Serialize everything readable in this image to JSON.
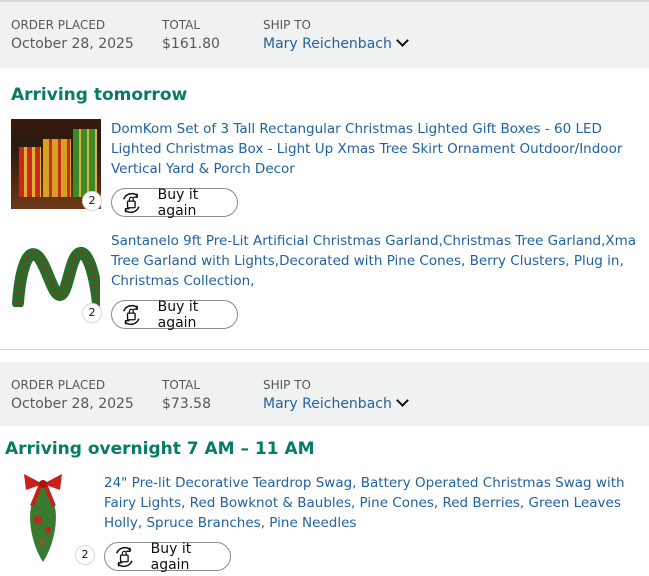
{
  "orders": [
    {
      "order_placed_label": "ORDER PLACED",
      "order_date": "October 28, 2025",
      "total_label": "TOTAL",
      "total": "$161.80",
      "ship_to_label": "SHIP TO",
      "ship_to": "Mary Reichenbach",
      "status": "Arriving tomorrow",
      "items": [
        {
          "title": "DomKom Set of 3 Tall Rectangular Christmas Lighted Gift Boxes - 60 LED Lighted Christmas Box - Light Up Xmas Tree Skirt Ornament Outdoor/Indoor Vertical Yard & Porch Decor",
          "quantity": "2",
          "button": "Buy it again"
        },
        {
          "title": "Santanelo 9ft Pre-Lit Artificial Christmas Garland,Christmas Tree Garland,Xma Tree Garland with Lights,Decorated with Pine Cones, Berry Clusters, Plug in, Christmas Collection,",
          "quantity": "2",
          "button": "Buy it again"
        }
      ]
    },
    {
      "order_placed_label": "ORDER PLACED",
      "order_date": "October 28, 2025",
      "total_label": "TOTAL",
      "total": "$73.58",
      "ship_to_label": "SHIP TO",
      "ship_to": "Mary Reichenbach",
      "status": "Arriving overnight 7 AM – 11 AM",
      "items": [
        {
          "title": "24\" Pre-lit Decorative Teardrop Swag, Battery Operated Christmas Swag with Fairy Lights, Red Bowknot & Baubles, Pine Cones, Red Berries, Green Leaves Holly, Spruce Branches, Pine Needles",
          "quantity": "2",
          "button": "Buy it again"
        }
      ]
    }
  ],
  "colors": {
    "status": "#067d62",
    "link": "#2162a1",
    "header_bg": "#f0f2f2"
  }
}
